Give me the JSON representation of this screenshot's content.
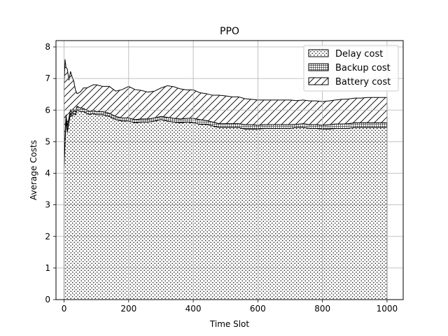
{
  "chart_data": {
    "type": "area",
    "stacked": true,
    "title": "PPO",
    "xlabel": "Time Slot",
    "ylabel": "Average Costs",
    "xlim": [
      -25,
      1050
    ],
    "ylim": [
      0,
      8.2
    ],
    "xticks": [
      0,
      200,
      400,
      600,
      800,
      1000
    ],
    "yticks": [
      0,
      1,
      2,
      3,
      4,
      5,
      6,
      7,
      8
    ],
    "grid": true,
    "legend_position": "top-right",
    "x": [
      0,
      3,
      6,
      10,
      15,
      20,
      25,
      30,
      35,
      40,
      50,
      60,
      70,
      80,
      90,
      100,
      120,
      140,
      160,
      180,
      200,
      220,
      240,
      260,
      280,
      300,
      320,
      340,
      360,
      380,
      400,
      420,
      440,
      460,
      480,
      500,
      520,
      540,
      560,
      580,
      600,
      620,
      640,
      660,
      680,
      700,
      720,
      740,
      760,
      780,
      800,
      820,
      840,
      860,
      880,
      900,
      920,
      940,
      960,
      980,
      1000
    ],
    "series": [
      {
        "name": "Delay cost",
        "pattern": "dots",
        "values": [
          4.2,
          5.0,
          5.7,
          5.3,
          5.6,
          5.9,
          5.8,
          5.9,
          5.85,
          6.0,
          5.95,
          5.95,
          5.9,
          5.85,
          5.9,
          5.85,
          5.85,
          5.8,
          5.7,
          5.65,
          5.65,
          5.6,
          5.62,
          5.62,
          5.65,
          5.7,
          5.65,
          5.62,
          5.6,
          5.62,
          5.6,
          5.55,
          5.55,
          5.5,
          5.45,
          5.45,
          5.45,
          5.45,
          5.4,
          5.4,
          5.4,
          5.42,
          5.42,
          5.42,
          5.42,
          5.42,
          5.45,
          5.45,
          5.42,
          5.42,
          5.4,
          5.4,
          5.42,
          5.42,
          5.42,
          5.45,
          5.45,
          5.45,
          5.45,
          5.45,
          5.45
        ]
      },
      {
        "name": "Backup cost",
        "pattern": "grid",
        "values": [
          0.1,
          0.2,
          0.15,
          0.2,
          0.15,
          0.12,
          0.1,
          0.12,
          0.1,
          0.12,
          0.12,
          0.1,
          0.1,
          0.1,
          0.1,
          0.1,
          0.1,
          0.1,
          0.1,
          0.1,
          0.1,
          0.1,
          0.1,
          0.1,
          0.1,
          0.1,
          0.12,
          0.12,
          0.12,
          0.12,
          0.14,
          0.15,
          0.12,
          0.12,
          0.12,
          0.12,
          0.12,
          0.12,
          0.14,
          0.14,
          0.12,
          0.12,
          0.12,
          0.12,
          0.12,
          0.12,
          0.1,
          0.12,
          0.12,
          0.12,
          0.12,
          0.14,
          0.14,
          0.14,
          0.15,
          0.15,
          0.15,
          0.15,
          0.15,
          0.15,
          0.15
        ]
      },
      {
        "name": "Battery cost",
        "pattern": "hatch",
        "values": [
          2.5,
          2.4,
          1.5,
          1.8,
          1.2,
          1.2,
          1.15,
          0.9,
          0.7,
          0.4,
          0.5,
          0.65,
          0.7,
          0.8,
          0.8,
          0.85,
          0.8,
          0.85,
          0.8,
          0.9,
          1.0,
          0.95,
          0.9,
          0.85,
          0.85,
          0.9,
          1.0,
          1.0,
          0.95,
          0.9,
          0.9,
          0.85,
          0.85,
          0.85,
          0.9,
          0.88,
          0.85,
          0.85,
          0.82,
          0.8,
          0.8,
          0.78,
          0.78,
          0.78,
          0.78,
          0.78,
          0.75,
          0.75,
          0.75,
          0.75,
          0.75,
          0.75,
          0.76,
          0.78,
          0.78,
          0.78,
          0.78,
          0.8,
          0.8,
          0.8,
          0.8
        ]
      }
    ]
  }
}
